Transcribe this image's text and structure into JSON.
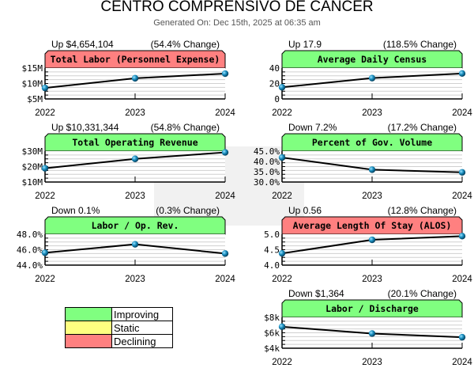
{
  "header": {
    "title": "CENTRO COMPRENSIVO DE CANCER",
    "subtitle": "Generated On: Dec 15th, 2025 at 06:35 am"
  },
  "colors": {
    "improving": "#80ff80",
    "static": "#ffff80",
    "declining": "#ff8080",
    "point": "#1a8fc0"
  },
  "legend": [
    {
      "label": "Improving",
      "color": "#80ff80"
    },
    {
      "label": "Static",
      "color": "#ffff80"
    },
    {
      "label": "Declining",
      "color": "#ff8080"
    }
  ],
  "chart_data": [
    {
      "type": "line",
      "title": "Total Labor (Personnel Expense)",
      "status": "declining",
      "delta": "Up $4,654,104",
      "change": "(54.4% Change)",
      "categories": [
        "2022",
        "2023",
        "2024"
      ],
      "values": [
        8.55,
        11.7,
        13.2
      ],
      "ylim": [
        5,
        15
      ],
      "yticks": [
        "$15M",
        "$10M",
        "$5M"
      ]
    },
    {
      "type": "line",
      "title": "Total Operating Revenue",
      "status": "improving",
      "delta": "Up $10,331,344",
      "change": "(54.8% Change)",
      "categories": [
        "2022",
        "2023",
        "2024"
      ],
      "values": [
        18.9,
        25.0,
        29.2
      ],
      "ylim": [
        10,
        30
      ],
      "yticks": [
        "$30M",
        "$20M",
        "$10M"
      ]
    },
    {
      "type": "line",
      "title": "Average Daily Census",
      "status": "improving",
      "delta": "Up 17.9",
      "change": "(118.5% Change)",
      "categories": [
        "2022",
        "2023",
        "2024"
      ],
      "values": [
        15.1,
        27.0,
        33.0
      ],
      "ylim": [
        0,
        40
      ],
      "yticks": [
        "40",
        "20",
        "0"
      ]
    },
    {
      "type": "line",
      "title": "Percent of Gov. Volume",
      "status": "improving",
      "delta": "Down 7.2%",
      "change": "(17.2% Change)",
      "categories": [
        "2022",
        "2023",
        "2024"
      ],
      "values": [
        41.9,
        36.0,
        34.7
      ],
      "ylim": [
        30,
        45
      ],
      "yticks": [
        "45.0%",
        "40.0%",
        "35.0%",
        "30.0%"
      ]
    },
    {
      "type": "line",
      "title": "Labor / Op. Rev.",
      "status": "improving",
      "delta": "Down 0.1%",
      "change": "(0.3% Change)",
      "categories": [
        "2022",
        "2023",
        "2024"
      ],
      "values": [
        45.6,
        46.7,
        45.5
      ],
      "ylim": [
        44,
        48
      ],
      "yticks": [
        "48.0%",
        "46.0%",
        "44.0%"
      ]
    },
    {
      "type": "line",
      "title": "Average Length Of Stay (ALOS)",
      "status": "declining",
      "delta": "Up 0.56",
      "change": "(12.8% Change)",
      "categories": [
        "2022",
        "2023",
        "2024"
      ],
      "values": [
        4.38,
        4.82,
        4.94
      ],
      "ylim": [
        4,
        5
      ],
      "yticks": [
        "5.0",
        "4.5",
        "4.0"
      ]
    },
    {
      "type": "line",
      "title": "Labor / Discharge",
      "status": "improving",
      "delta": "Down $1,364",
      "change": "(20.1% Change)",
      "categories": [
        "2022",
        "2023",
        "2024"
      ],
      "values": [
        6786,
        5900,
        5422
      ],
      "ylim": [
        4000,
        8000
      ],
      "yticks": [
        "$8k",
        "$6k",
        "$4k"
      ]
    }
  ]
}
